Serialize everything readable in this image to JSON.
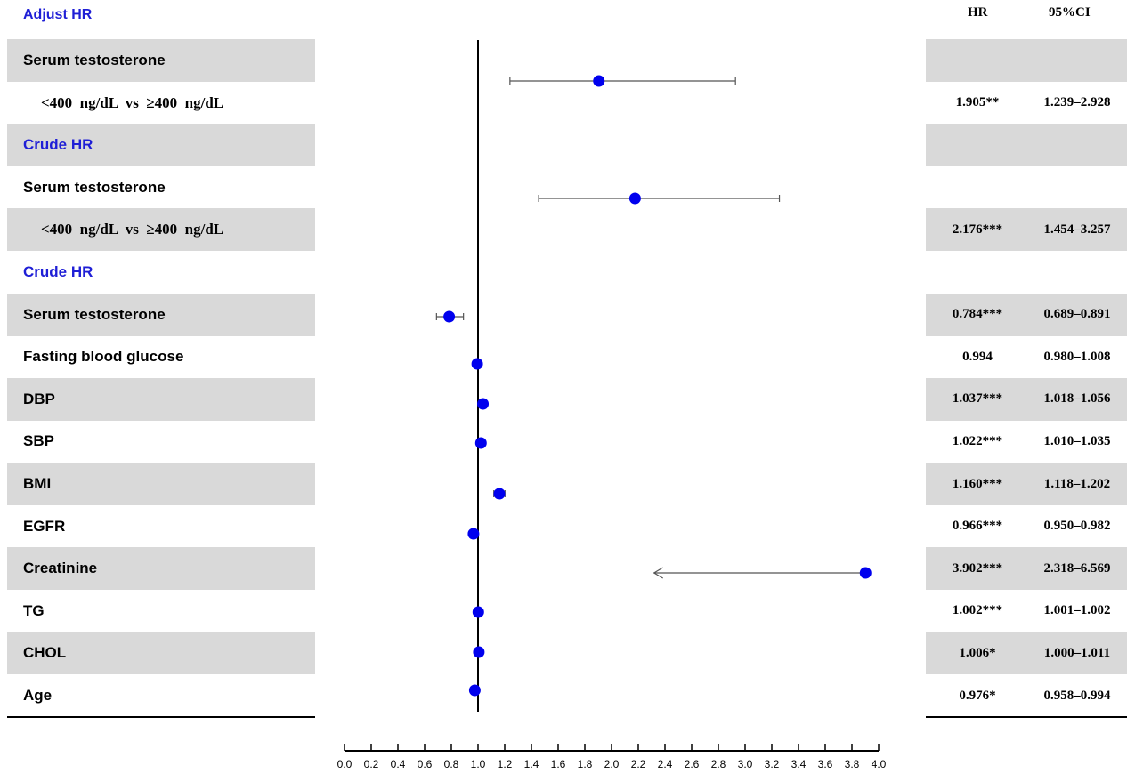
{
  "table": {
    "title": "Adjust HR",
    "hr_header": "HR",
    "ci_header": "95%CI",
    "rows": [
      {
        "label": "Serum testosterone",
        "style": "normal",
        "shaded": true,
        "hr": "",
        "ci": ""
      },
      {
        "label": "<400  ng/dL  vs  ≥400  ng/dL",
        "style": "indent",
        "shaded": false,
        "hr": "1.905**",
        "ci": "1.239–2.928"
      },
      {
        "label": "Crude HR",
        "style": "header",
        "shaded": true,
        "hr": "",
        "ci": ""
      },
      {
        "label": "Serum testosterone",
        "style": "normal",
        "shaded": false,
        "hr": "",
        "ci": ""
      },
      {
        "label": "<400  ng/dL  vs  ≥400  ng/dL",
        "style": "indent",
        "shaded": true,
        "hr": "2.176***",
        "ci": "1.454–3.257"
      },
      {
        "label": "Crude HR",
        "style": "header",
        "shaded": false,
        "hr": "",
        "ci": ""
      },
      {
        "label": "Serum testosterone",
        "style": "normal",
        "shaded": true,
        "hr": "0.784***",
        "ci": "0.689–0.891"
      },
      {
        "label": "Fasting blood glucose",
        "style": "normal",
        "shaded": false,
        "hr": "0.994",
        "ci": "0.980–1.008"
      },
      {
        "label": "DBP",
        "style": "normal",
        "shaded": true,
        "hr": "1.037***",
        "ci": "1.018–1.056"
      },
      {
        "label": "SBP",
        "style": "normal",
        "shaded": false,
        "hr": "1.022***",
        "ci": "1.010–1.035"
      },
      {
        "label": "BMI",
        "style": "normal",
        "shaded": true,
        "hr": "1.160***",
        "ci": "1.118–1.202"
      },
      {
        "label": "EGFR",
        "style": "normal",
        "shaded": false,
        "hr": "0.966***",
        "ci": "0.950–0.982"
      },
      {
        "label": "Creatinine",
        "style": "normal",
        "shaded": true,
        "hr": "3.902***",
        "ci": "2.318–6.569"
      },
      {
        "label": "TG",
        "style": "normal",
        "shaded": false,
        "hr": "1.002***",
        "ci": "1.001–1.002"
      },
      {
        "label": "CHOL",
        "style": "normal",
        "shaded": true,
        "hr": "1.006*",
        "ci": "1.000–1.011"
      },
      {
        "label": "Age",
        "style": "normal",
        "shaded": false,
        "hr": "0.976*",
        "ci": "0.958–0.994"
      }
    ]
  },
  "colors": {
    "point": "#0000ee",
    "shade": "#d9d9d9",
    "header_text": "#1f1fd6"
  },
  "chart_data": {
    "type": "forest",
    "reference_line": 1.0,
    "xlim": [
      0.0,
      4.0
    ],
    "xticks": [
      "0.0",
      "0.2",
      "0.4",
      "0.6",
      "0.8",
      "1.0",
      "1.2",
      "1.4",
      "1.6",
      "1.8",
      "2.0",
      "2.2",
      "2.4",
      "2.6",
      "2.8",
      "3.0",
      "3.2",
      "3.4",
      "3.6",
      "3.8",
      "4.0"
    ],
    "points": [
      {
        "name": "<400 ng/dL vs ≥400 ng/dL (Adjust HR)",
        "hr": 1.905,
        "lower": 1.239,
        "upper": 2.928,
        "truncated": false
      },
      {
        "name": "<400 ng/dL vs ≥400 ng/dL (Crude HR)",
        "hr": 2.176,
        "lower": 1.454,
        "upper": 3.257,
        "truncated": false
      },
      {
        "name": "Serum testosterone",
        "hr": 0.784,
        "lower": 0.689,
        "upper": 0.891,
        "truncated": false
      },
      {
        "name": "Fasting blood glucose",
        "hr": 0.994,
        "lower": 0.98,
        "upper": 1.008,
        "truncated": false
      },
      {
        "name": "DBP",
        "hr": 1.037,
        "lower": 1.018,
        "upper": 1.056,
        "truncated": false
      },
      {
        "name": "SBP",
        "hr": 1.022,
        "lower": 1.01,
        "upper": 1.035,
        "truncated": false
      },
      {
        "name": "BMI",
        "hr": 1.16,
        "lower": 1.118,
        "upper": 1.202,
        "truncated": false
      },
      {
        "name": "EGFR",
        "hr": 0.966,
        "lower": 0.95,
        "upper": 0.982,
        "truncated": false
      },
      {
        "name": "Creatinine",
        "hr": 3.902,
        "lower": 2.318,
        "upper": 6.569,
        "truncated": true
      },
      {
        "name": "TG",
        "hr": 1.002,
        "lower": 1.001,
        "upper": 1.002,
        "truncated": false
      },
      {
        "name": "CHOL",
        "hr": 1.006,
        "lower": 1.0,
        "upper": 1.011,
        "truncated": false
      },
      {
        "name": "Age",
        "hr": 0.976,
        "lower": 0.958,
        "upper": 0.994,
        "truncated": false
      }
    ]
  }
}
